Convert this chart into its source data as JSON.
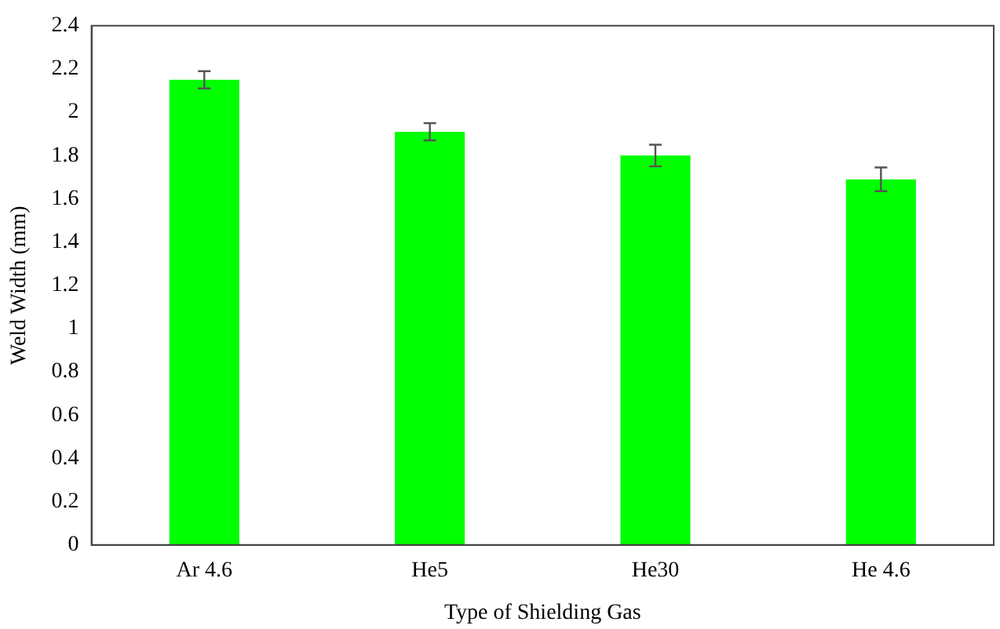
{
  "chart_data": {
    "type": "bar",
    "xlabel": "Type of Shielding Gas",
    "ylabel": "Weld Width (mm)",
    "categories": [
      "Ar 4.6",
      "He5",
      "He30",
      "He 4.6"
    ],
    "values": [
      2.15,
      1.91,
      1.8,
      1.69
    ],
    "errors": [
      0.04,
      0.04,
      0.05,
      0.055
    ],
    "color": "#00ff00",
    "ylim": [
      0,
      2.4
    ],
    "yticks": [
      0,
      0.2,
      0.4,
      0.6,
      0.8,
      1,
      1.2,
      1.4,
      1.6,
      1.8,
      2,
      2.2,
      2.4
    ],
    "grid": false,
    "legend": false
  }
}
